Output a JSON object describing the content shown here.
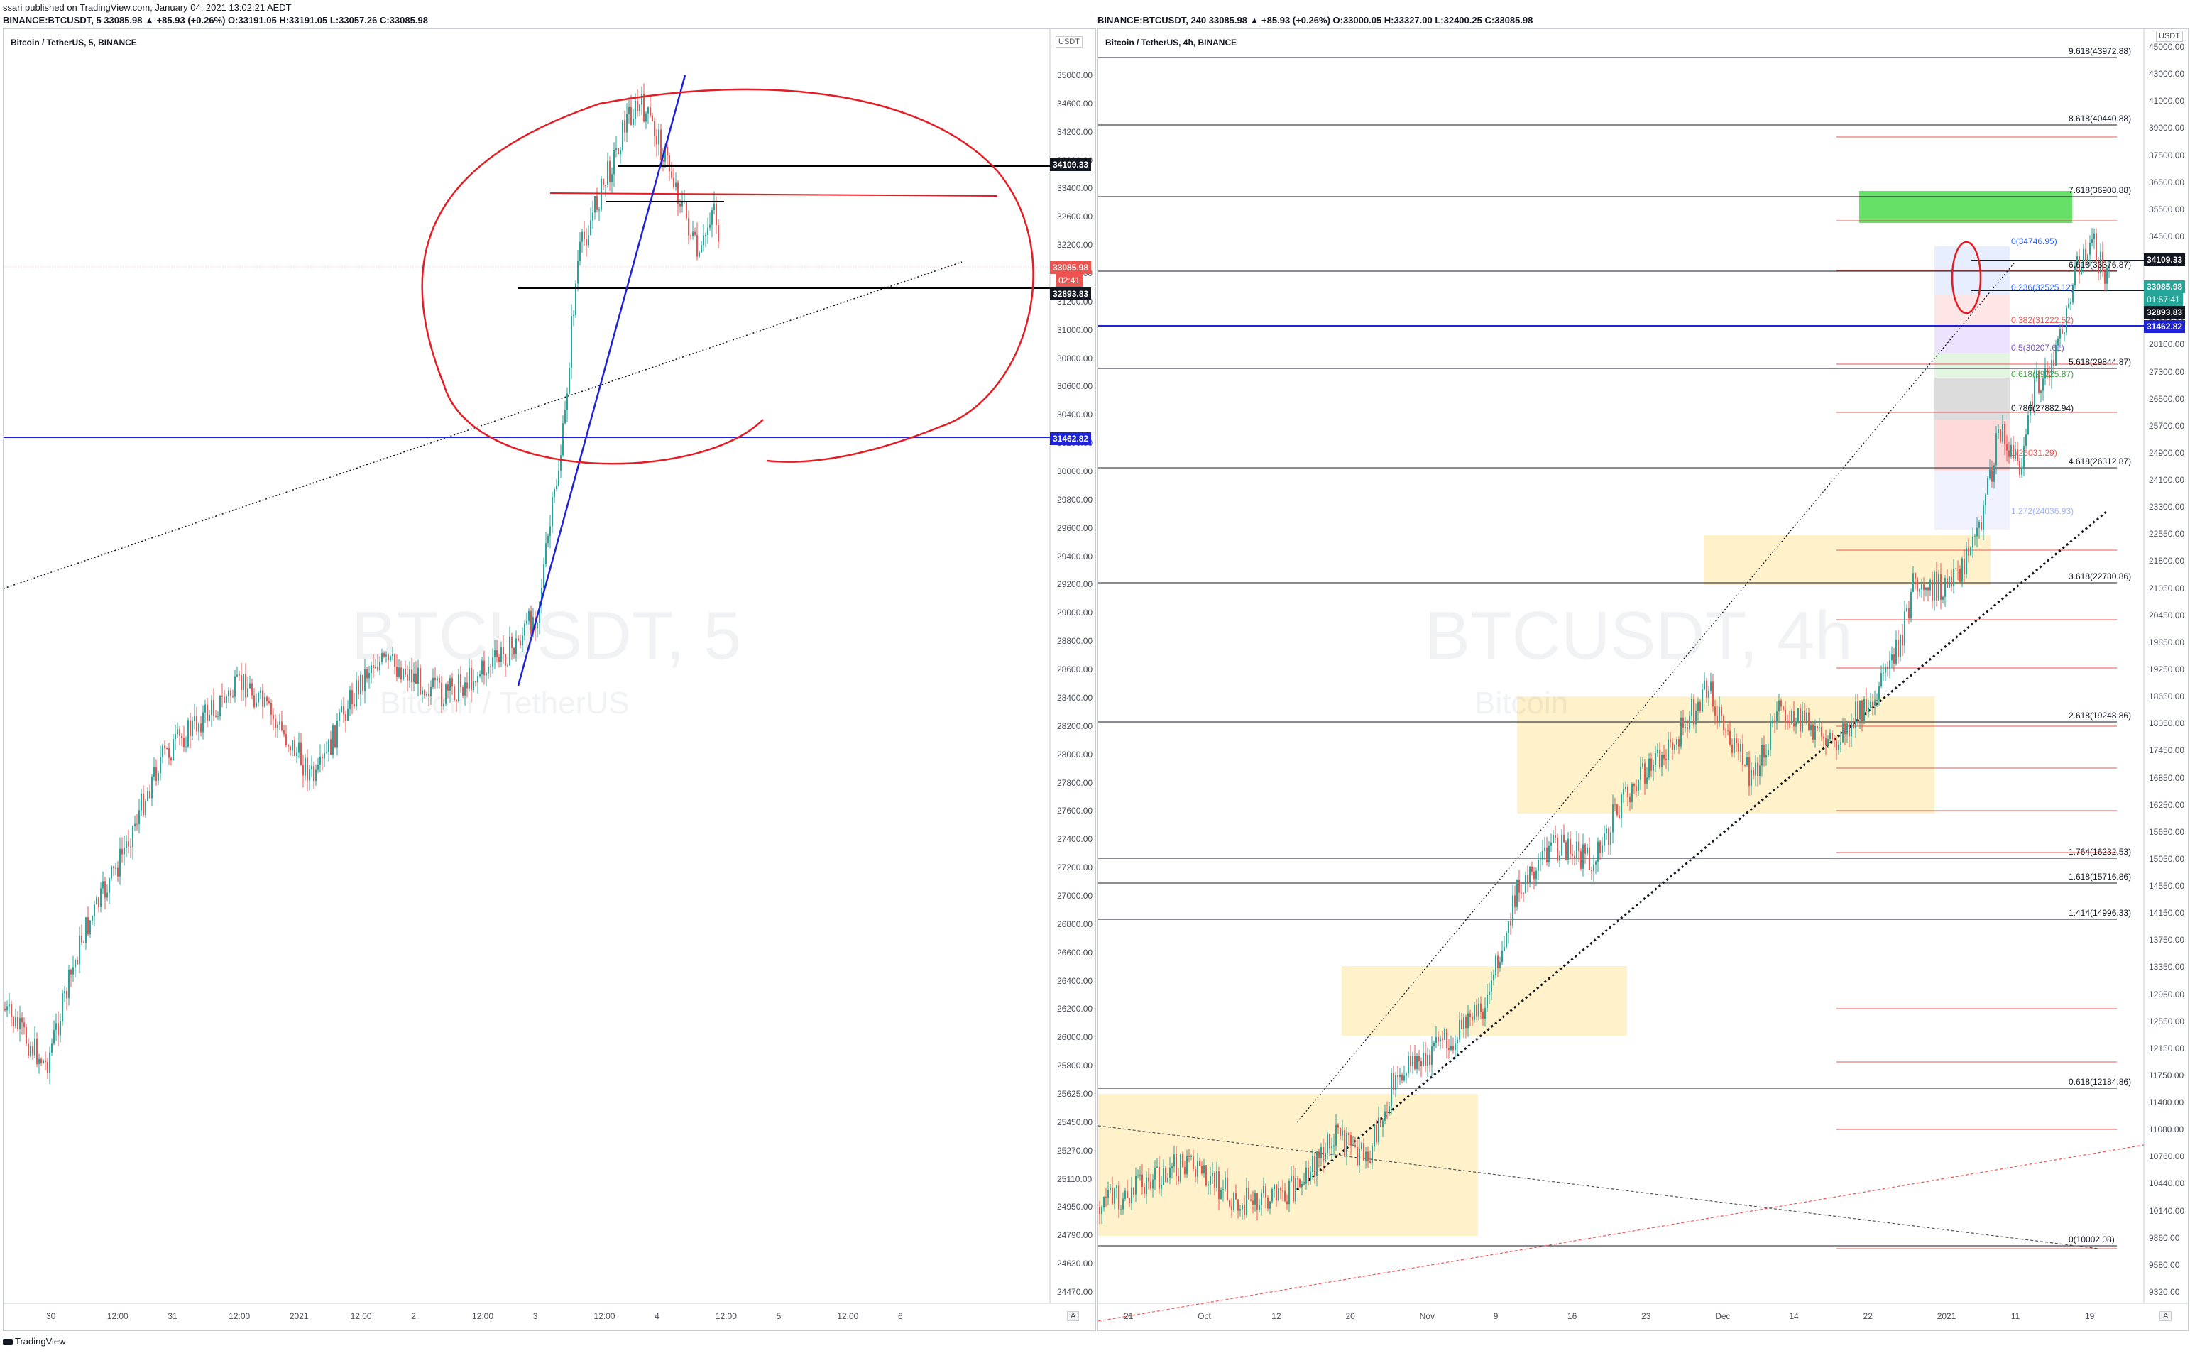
{
  "header": {
    "published": "ssari published on TradingView.com, January 04, 2021 13:02:21 AEDT",
    "left_symbol": "BINANCE:BTCUSDT, 5 33085.98 ▲ +85.93 (+0.26%) O:33191.05 H:33191.05 L:33057.26 C:33085.98",
    "right_symbol": "BINANCE:BTCUSDT, 240 33085.98 ▲ +85.93 (+0.26%) O:33000.05 H:33327.00 L:32400.25 C:33085.98"
  },
  "left_chart": {
    "title": "Bitcoin / TetherUS, 5, BINANCE",
    "watermark": "BTCUSDT, 5",
    "watermark_sub": "Bitcoin / TetherUS",
    "currency": "USDT",
    "auto": "A",
    "y_ticks": [
      "35000.00",
      "34600.00",
      "34200.00",
      "33800.00",
      "33400.00",
      "32600.00",
      "32200.00",
      "31800.00",
      "31200.00",
      "31000.00",
      "30800.00",
      "30600.00",
      "30400.00",
      "30200.00",
      "30000.00",
      "29800.00",
      "29600.00",
      "29400.00",
      "29200.00",
      "29000.00",
      "28800.00",
      "28600.00",
      "28400.00",
      "28200.00",
      "28000.00",
      "27800.00",
      "27600.00",
      "27400.00",
      "27200.00",
      "27000.00",
      "26800.00",
      "26600.00",
      "26400.00",
      "26200.00",
      "26000.00",
      "25800.00",
      "25625.00",
      "25450.00",
      "25270.00",
      "25110.00",
      "24950.00",
      "24790.00",
      "24630.00",
      "24470.00"
    ],
    "x_ticks": [
      "30",
      "12:00",
      "31",
      "12:00",
      "2021",
      "12:00",
      "2",
      "12:00",
      "3",
      "12:00",
      "4",
      "12:00",
      "5",
      "12:00",
      "6"
    ],
    "tags": {
      "resistance": "34109.33",
      "last": "33085.98",
      "countdown": "02:41",
      "support": "32893.83",
      "blue_level": "31462.82"
    },
    "colors": {
      "up": "#26a69a",
      "down": "#ef5350",
      "blue": "#1e22d8",
      "red_draw": "#e51c23",
      "black": "#000000"
    }
  },
  "right_chart": {
    "title": "Bitcoin / TetherUS, 4h, BINANCE",
    "watermark": "BTCUSDT, 4h",
    "watermark_sub": "Bitcoin",
    "currency": "USDT",
    "auto": "A",
    "y_ticks": [
      "45000.00",
      "43000.00",
      "41000.00",
      "39000.00",
      "37500.00",
      "36500.00",
      "35500.00",
      "34500.00",
      "32500.00",
      "30000.00",
      "28900.00",
      "28100.00",
      "27300.00",
      "26500.00",
      "25700.00",
      "24900.00",
      "24100.00",
      "23300.00",
      "22550.00",
      "21800.00",
      "21050.00",
      "20450.00",
      "19850.00",
      "19250.00",
      "18650.00",
      "18050.00",
      "17450.00",
      "16850.00",
      "16250.00",
      "15650.00",
      "15050.00",
      "14550.00",
      "14150.00",
      "13750.00",
      "13350.00",
      "12950.00",
      "12550.00",
      "12150.00",
      "11750.00",
      "11400.00",
      "11080.00",
      "10760.00",
      "10440.00",
      "10140.00",
      "9860.00",
      "9580.00",
      "9320.00"
    ],
    "x_ticks": [
      "21",
      "Oct",
      "12",
      "20",
      "Nov",
      "9",
      "16",
      "23",
      "Dec",
      "14",
      "22",
      "2021",
      "11",
      "19"
    ],
    "fib_ext": [
      "9.618(43972.88)",
      "8.618(40440.88)",
      "7.618(36908.88)",
      "6.618(33376.87)",
      "5.618(29844.87)",
      "4.618(26312.87)",
      "3.618(22780.86)",
      "2.618(19248.86)",
      "1.764(16232.53)",
      "1.618(15716.86)",
      "1.414(14996.33)",
      "0.618(12184.86)",
      "0(10002.08)"
    ],
    "fib_ret": [
      "0(34746.95)",
      "0.236(32525.12)",
      "0.382(31222.52)",
      "0.5(30207.61)",
      "0.618(29225.87)",
      "0.786(27882.94)",
      "1(26031.29)",
      "1.272(24036.93)"
    ],
    "tags": {
      "resistance": "34109.33",
      "last": "33085.98",
      "countdown": "01:57:41",
      "support": "32893.83",
      "blue_level": "31462.82"
    },
    "colors": {
      "zone": "#fff1c9",
      "green_zone": "#66e066",
      "fib_blue": "#2962ff",
      "fib_red": "#ef5350"
    }
  },
  "footer": {
    "brand": "TradingView"
  }
}
